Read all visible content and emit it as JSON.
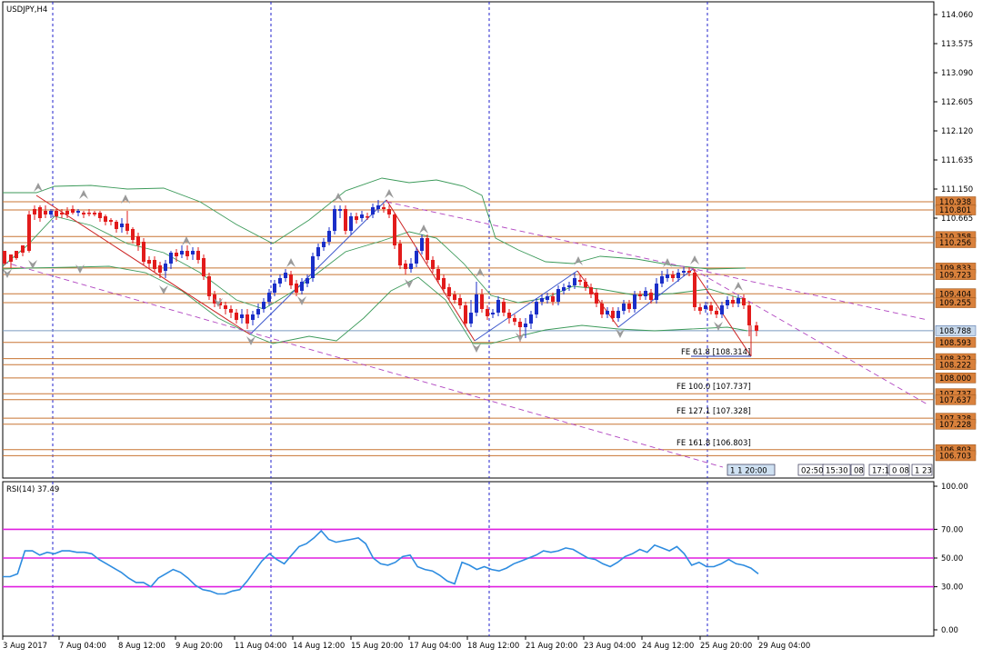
{
  "chart_data": [
    {
      "type": "candlestick",
      "title": "USDJPY,H4",
      "ylim": [
        106.5,
        114.2
      ],
      "y_ticks": [
        "114.060",
        "113.575",
        "113.090",
        "112.605",
        "112.120",
        "111.635",
        "111.150",
        "110.665"
      ],
      "x_ticks": [
        "3 Aug 2017",
        "7 Aug 04:00",
        "8 Aug 12:00",
        "9 Aug 20:00",
        "11 Aug 04:00",
        "14 Aug 12:00",
        "15 Aug 20:00",
        "17 Aug 04:00",
        "18 Aug 12:00",
        "21 Aug 20:00",
        "23 Aug 04:00",
        "24 Aug 12:00",
        "25 Aug 20:00",
        "29 Aug 04:00"
      ],
      "levels": [
        {
          "value": 110.938,
          "label": "110.938"
        },
        {
          "value": 110.801,
          "label": "110.801"
        },
        {
          "value": 110.358,
          "label": "110.358"
        },
        {
          "value": 110.256,
          "label": "110.256"
        },
        {
          "value": 109.833,
          "label": "109.833"
        },
        {
          "value": 109.723,
          "label": "109.723"
        },
        {
          "value": 109.404,
          "label": "109.404"
        },
        {
          "value": 109.255,
          "label": "109.255"
        },
        {
          "value": 108.788,
          "label": "108.788"
        },
        {
          "value": 108.593,
          "label": "108.593"
        },
        {
          "value": 108.322,
          "label": "108.322"
        },
        {
          "value": 108.222,
          "label": "108.222"
        },
        {
          "value": 108.0,
          "label": "108.000"
        },
        {
          "value": 107.737,
          "label": "107.737"
        },
        {
          "value": 107.637,
          "label": "107.637"
        },
        {
          "value": 107.328,
          "label": "107.328"
        },
        {
          "value": 107.228,
          "label": "107.228"
        },
        {
          "value": 106.803,
          "label": "106.803"
        },
        {
          "value": 106.703,
          "label": "106.703"
        }
      ],
      "fe_labels": [
        {
          "text": "FE 61.8 [108.314]",
          "value": 108.314
        },
        {
          "text": "FE 100.0 [107.737]",
          "value": 107.737
        },
        {
          "text": "FE 127.1 [107.328]",
          "value": 107.328
        },
        {
          "text": "FE 161.8 [106.803]",
          "value": 106.803
        }
      ],
      "current_price": "108.788",
      "time_tags": [
        "1 1 20:00",
        "02:50",
        "15:30",
        "08",
        "17:1",
        "0 08",
        "1 23"
      ]
    },
    {
      "type": "line",
      "title": "RSI(14) 37.49",
      "ylim": [
        0,
        100
      ],
      "y_ticks": [
        "100.00",
        "70.00",
        "50.00",
        "30.00",
        "0.00"
      ],
      "levels": [
        70,
        50,
        30
      ],
      "series": [
        {
          "values": [
            37,
            37,
            39,
            55,
            55,
            52,
            54,
            53,
            55,
            55,
            54,
            54,
            53,
            49,
            46,
            43,
            40,
            36,
            33,
            33,
            30,
            36,
            39,
            42,
            40,
            36,
            31,
            28,
            27,
            25,
            25,
            27,
            28,
            34,
            41,
            48,
            53,
            49,
            46,
            52,
            58,
            60,
            64,
            69,
            63,
            61,
            62,
            63,
            64,
            60,
            50,
            46,
            45,
            47,
            51,
            52,
            44,
            42,
            41,
            38,
            34,
            32,
            47,
            45,
            42,
            44,
            42,
            41,
            43,
            46,
            48,
            50,
            52,
            55,
            54,
            55,
            57,
            56,
            53,
            50,
            49,
            46,
            44,
            47,
            51,
            53,
            56,
            54,
            59,
            57,
            55,
            58,
            53,
            45,
            47,
            44,
            44,
            46,
            49,
            46,
            45,
            43,
            39
          ]
        }
      ]
    }
  ]
}
